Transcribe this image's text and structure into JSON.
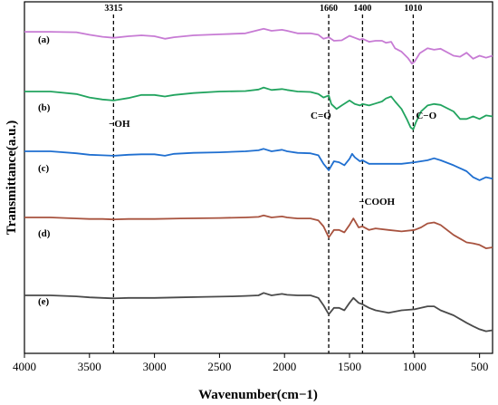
{
  "chart_data": {
    "type": "line",
    "xlabel": "Wavenumber(cm−1)",
    "ylabel": "Transmittance(a.u.)",
    "xlim": [
      4000,
      400
    ],
    "xticks": [
      4000,
      3500,
      3000,
      2500,
      2000,
      1500,
      1000,
      500
    ],
    "y_ticks_shown": false,
    "grid": false,
    "reference_lines": [
      {
        "x": 3315,
        "label": "3315"
      },
      {
        "x": 1660,
        "label": "1660"
      },
      {
        "x": 1400,
        "label": "1400"
      },
      {
        "x": 1010,
        "label": "1010"
      }
    ],
    "annotations": [
      {
        "text": "−OH",
        "x": 3270
      },
      {
        "text": "C=O",
        "x": 1720
      },
      {
        "text": "−COOH",
        "x": 1290
      },
      {
        "text": "C−O",
        "x": 910
      }
    ],
    "series": [
      {
        "name": "(a)",
        "color": "#c77bd4",
        "points": [
          [
            4000,
            0.02
          ],
          [
            3800,
            0.02
          ],
          [
            3600,
            0.03
          ],
          [
            3500,
            0.08
          ],
          [
            3400,
            0.12
          ],
          [
            3315,
            0.14
          ],
          [
            3200,
            0.11
          ],
          [
            3100,
            0.09
          ],
          [
            3000,
            0.11
          ],
          [
            2920,
            0.16
          ],
          [
            2850,
            0.13
          ],
          [
            2700,
            0.09
          ],
          [
            2500,
            0.07
          ],
          [
            2300,
            0.05
          ],
          [
            2160,
            -0.04
          ],
          [
            2100,
            0.0
          ],
          [
            2020,
            -0.02
          ],
          [
            1980,
            0.0
          ],
          [
            1900,
            0.05
          ],
          [
            1800,
            0.05
          ],
          [
            1740,
            0.08
          ],
          [
            1700,
            0.16
          ],
          [
            1660,
            0.13
          ],
          [
            1620,
            0.2
          ],
          [
            1560,
            0.19
          ],
          [
            1500,
            0.1
          ],
          [
            1460,
            0.14
          ],
          [
            1420,
            0.18
          ],
          [
            1400,
            0.16
          ],
          [
            1350,
            0.22
          ],
          [
            1300,
            0.2
          ],
          [
            1250,
            0.2
          ],
          [
            1220,
            0.24
          ],
          [
            1180,
            0.22
          ],
          [
            1150,
            0.35
          ],
          [
            1100,
            0.42
          ],
          [
            1050,
            0.55
          ],
          [
            1020,
            0.66
          ],
          [
            1000,
            0.62
          ],
          [
            960,
            0.45
          ],
          [
            900,
            0.35
          ],
          [
            850,
            0.38
          ],
          [
            800,
            0.36
          ],
          [
            700,
            0.5
          ],
          [
            650,
            0.52
          ],
          [
            600,
            0.44
          ],
          [
            550,
            0.56
          ],
          [
            500,
            0.5
          ],
          [
            450,
            0.54
          ],
          [
            400,
            0.5
          ]
        ]
      },
      {
        "name": "(b)",
        "color": "#22a45f",
        "points": [
          [
            4000,
            0.0
          ],
          [
            3800,
            0.0
          ],
          [
            3600,
            0.05
          ],
          [
            3500,
            0.12
          ],
          [
            3400,
            0.16
          ],
          [
            3315,
            0.18
          ],
          [
            3200,
            0.13
          ],
          [
            3100,
            0.07
          ],
          [
            3000,
            0.07
          ],
          [
            2920,
            0.1
          ],
          [
            2850,
            0.07
          ],
          [
            2700,
            0.03
          ],
          [
            2500,
            0.0
          ],
          [
            2300,
            -0.01
          ],
          [
            2200,
            -0.04
          ],
          [
            2160,
            -0.08
          ],
          [
            2100,
            -0.03
          ],
          [
            2020,
            -0.05
          ],
          [
            1980,
            -0.03
          ],
          [
            1900,
            0.0
          ],
          [
            1800,
            0.01
          ],
          [
            1740,
            0.05
          ],
          [
            1700,
            0.12
          ],
          [
            1660,
            0.08
          ],
          [
            1640,
            0.25
          ],
          [
            1600,
            0.35
          ],
          [
            1560,
            0.28
          ],
          [
            1500,
            0.18
          ],
          [
            1460,
            0.25
          ],
          [
            1420,
            0.28
          ],
          [
            1400,
            0.25
          ],
          [
            1350,
            0.28
          ],
          [
            1300,
            0.24
          ],
          [
            1250,
            0.2
          ],
          [
            1220,
            0.14
          ],
          [
            1180,
            0.1
          ],
          [
            1150,
            0.2
          ],
          [
            1100,
            0.35
          ],
          [
            1060,
            0.55
          ],
          [
            1030,
            0.72
          ],
          [
            1010,
            0.76
          ],
          [
            990,
            0.62
          ],
          [
            950,
            0.4
          ],
          [
            900,
            0.28
          ],
          [
            850,
            0.25
          ],
          [
            800,
            0.27
          ],
          [
            700,
            0.4
          ],
          [
            650,
            0.55
          ],
          [
            600,
            0.55
          ],
          [
            550,
            0.5
          ],
          [
            500,
            0.55
          ],
          [
            450,
            0.48
          ],
          [
            400,
            0.5
          ]
        ]
      },
      {
        "name": "(c)",
        "color": "#1f6fd0",
        "points": [
          [
            4000,
            0.0
          ],
          [
            3800,
            0.0
          ],
          [
            3600,
            0.04
          ],
          [
            3500,
            0.07
          ],
          [
            3400,
            0.08
          ],
          [
            3315,
            0.09
          ],
          [
            3200,
            0.07
          ],
          [
            3100,
            0.06
          ],
          [
            3000,
            0.06
          ],
          [
            2920,
            0.09
          ],
          [
            2850,
            0.05
          ],
          [
            2700,
            0.03
          ],
          [
            2500,
            0.02
          ],
          [
            2300,
            0.0
          ],
          [
            2200,
            -0.02
          ],
          [
            2160,
            -0.05
          ],
          [
            2100,
            0.0
          ],
          [
            2020,
            -0.03
          ],
          [
            1980,
            0.0
          ],
          [
            1900,
            0.03
          ],
          [
            1800,
            0.04
          ],
          [
            1740,
            0.08
          ],
          [
            1700,
            0.25
          ],
          [
            1660,
            0.38
          ],
          [
            1620,
            0.2
          ],
          [
            1580,
            0.22
          ],
          [
            1540,
            0.28
          ],
          [
            1500,
            0.15
          ],
          [
            1480,
            0.05
          ],
          [
            1460,
            0.12
          ],
          [
            1420,
            0.2
          ],
          [
            1400,
            0.18
          ],
          [
            1350,
            0.25
          ],
          [
            1300,
            0.25
          ],
          [
            1200,
            0.25
          ],
          [
            1100,
            0.25
          ],
          [
            1000,
            0.22
          ],
          [
            900,
            0.18
          ],
          [
            850,
            0.14
          ],
          [
            800,
            0.18
          ],
          [
            700,
            0.28
          ],
          [
            600,
            0.4
          ],
          [
            550,
            0.52
          ],
          [
            500,
            0.58
          ],
          [
            450,
            0.52
          ],
          [
            400,
            0.55
          ]
        ]
      },
      {
        "name": "(d)",
        "color": "#a8533f",
        "points": [
          [
            4000,
            0.0
          ],
          [
            3800,
            0.0
          ],
          [
            3600,
            0.02
          ],
          [
            3500,
            0.03
          ],
          [
            3400,
            0.03
          ],
          [
            3315,
            0.04
          ],
          [
            3200,
            0.03
          ],
          [
            3000,
            0.03
          ],
          [
            2800,
            0.02
          ],
          [
            2500,
            0.01
          ],
          [
            2300,
            0.0
          ],
          [
            2200,
            -0.01
          ],
          [
            2160,
            -0.04
          ],
          [
            2100,
            0.0
          ],
          [
            2020,
            -0.02
          ],
          [
            1980,
            0.0
          ],
          [
            1900,
            0.02
          ],
          [
            1800,
            0.02
          ],
          [
            1740,
            0.06
          ],
          [
            1700,
            0.18
          ],
          [
            1660,
            0.4
          ],
          [
            1620,
            0.25
          ],
          [
            1580,
            0.25
          ],
          [
            1540,
            0.3
          ],
          [
            1500,
            0.15
          ],
          [
            1470,
            0.02
          ],
          [
            1430,
            0.2
          ],
          [
            1400,
            0.18
          ],
          [
            1350,
            0.25
          ],
          [
            1300,
            0.22
          ],
          [
            1200,
            0.25
          ],
          [
            1100,
            0.28
          ],
          [
            1000,
            0.25
          ],
          [
            950,
            0.2
          ],
          [
            900,
            0.12
          ],
          [
            850,
            0.1
          ],
          [
            800,
            0.15
          ],
          [
            700,
            0.35
          ],
          [
            600,
            0.5
          ],
          [
            550,
            0.52
          ],
          [
            500,
            0.55
          ],
          [
            450,
            0.62
          ],
          [
            400,
            0.6
          ]
        ]
      },
      {
        "name": "(e)",
        "color": "#4a4a4a",
        "points": [
          [
            4000,
            0.0
          ],
          [
            3800,
            0.0
          ],
          [
            3600,
            0.02
          ],
          [
            3500,
            0.04
          ],
          [
            3400,
            0.05
          ],
          [
            3315,
            0.06
          ],
          [
            3200,
            0.05
          ],
          [
            3000,
            0.05
          ],
          [
            2800,
            0.04
          ],
          [
            2600,
            0.03
          ],
          [
            2400,
            0.02
          ],
          [
            2300,
            0.01
          ],
          [
            2200,
            0.0
          ],
          [
            2160,
            -0.05
          ],
          [
            2100,
            0.0
          ],
          [
            2020,
            -0.03
          ],
          [
            1980,
            -0.01
          ],
          [
            1900,
            0.0
          ],
          [
            1800,
            0.0
          ],
          [
            1740,
            0.05
          ],
          [
            1700,
            0.2
          ],
          [
            1660,
            0.38
          ],
          [
            1620,
            0.25
          ],
          [
            1580,
            0.25
          ],
          [
            1540,
            0.3
          ],
          [
            1500,
            0.15
          ],
          [
            1470,
            0.05
          ],
          [
            1430,
            0.15
          ],
          [
            1400,
            0.18
          ],
          [
            1350,
            0.25
          ],
          [
            1300,
            0.3
          ],
          [
            1200,
            0.35
          ],
          [
            1100,
            0.3
          ],
          [
            1000,
            0.28
          ],
          [
            950,
            0.25
          ],
          [
            900,
            0.22
          ],
          [
            850,
            0.22
          ],
          [
            800,
            0.3
          ],
          [
            700,
            0.4
          ],
          [
            600,
            0.55
          ],
          [
            550,
            0.62
          ],
          [
            500,
            0.68
          ],
          [
            450,
            0.72
          ],
          [
            400,
            0.7
          ]
        ]
      }
    ]
  }
}
